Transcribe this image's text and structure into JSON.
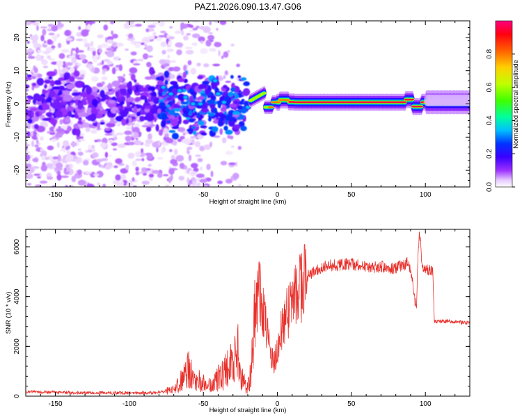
{
  "title": "PAZ1.2026.090.13.47.G06",
  "chart_data": [
    {
      "type": "heatmap",
      "title": "PAZ1.2026.090.13.47.G06",
      "xlabel": "Height of straight line (km)",
      "ylabel": "Frequency (Hz)",
      "xlim": [
        -170,
        130
      ],
      "ylim": [
        -25,
        25
      ],
      "xticks": [
        -150,
        -100,
        -50,
        0,
        50,
        100
      ],
      "yticks": [
        -20,
        -10,
        0,
        10,
        20
      ],
      "xtick_labels": [
        "-150",
        "-100",
        "-50",
        "0",
        "50",
        "100"
      ],
      "ytick_labels": [
        "-20",
        "-10",
        "0",
        "10",
        "20"
      ],
      "colorbar": {
        "label": "Normalized spectral amplitude",
        "range": [
          0,
          1
        ],
        "ticks": [
          0.0,
          0.2,
          0.4,
          0.6,
          0.8
        ],
        "tick_labels": [
          "0.0",
          "0.2",
          "0.4",
          "0.6",
          "0.8"
        ],
        "colors": [
          "#ffffff",
          "#d9b3ff",
          "#7f00ff",
          "#0000ff",
          "#00bfff",
          "#00ff80",
          "#80ff00",
          "#ffff00",
          "#ff8000",
          "#ff0000",
          "#ff0080"
        ]
      },
      "features": [
        {
          "region": "noise",
          "x_range": [
            -170,
            -25
          ],
          "freq_spread": [
            -25,
            25
          ],
          "amplitude": [
            0.0,
            0.15
          ]
        },
        {
          "region": "transition",
          "x_range": [
            -80,
            -20
          ],
          "freq_spread": [
            -12,
            10
          ],
          "amplitude": [
            0.1,
            0.4
          ]
        },
        {
          "region": "tone",
          "x_range": [
            -15,
            130
          ],
          "freq_center": 0.5,
          "amplitude": [
            0.6,
            1.0
          ]
        }
      ]
    },
    {
      "type": "line",
      "xlabel": "Height of straight line (km)",
      "ylabel": "SNR (10 * v/v)",
      "xlim": [
        -170,
        130
      ],
      "ylim": [
        0,
        6700
      ],
      "xticks": [
        -150,
        -100,
        -50,
        0,
        50,
        100
      ],
      "yticks": [
        0,
        2000,
        4000,
        6000
      ],
      "xtick_labels": [
        "-150",
        "-100",
        "-50",
        "0",
        "50",
        "100"
      ],
      "ytick_labels": [
        "0",
        "2000",
        "4000",
        "6000"
      ],
      "series": [
        {
          "name": "SNR",
          "color": "#e8302b",
          "x": [
            -170,
            -150,
            -130,
            -110,
            -90,
            -80,
            -70,
            -65,
            -60,
            -55,
            -50,
            -45,
            -40,
            -35,
            -30,
            -27,
            -25,
            -22,
            -20,
            -18,
            -16,
            -14,
            -12,
            -10,
            -8,
            -6,
            -4,
            -2,
            0,
            3,
            5,
            8,
            10,
            13,
            15,
            18,
            20,
            25,
            30,
            35,
            40,
            45,
            50,
            55,
            60,
            65,
            70,
            75,
            80,
            85,
            88,
            90,
            92,
            94,
            95,
            96,
            97,
            98,
            100,
            102,
            104,
            105,
            106,
            107,
            110,
            115,
            120,
            125,
            130
          ],
          "y": [
            180,
            150,
            140,
            130,
            130,
            160,
            250,
            600,
            1100,
            800,
            500,
            400,
            700,
            1000,
            1300,
            1900,
            800,
            500,
            300,
            900,
            2500,
            3800,
            4100,
            3600,
            2800,
            2200,
            1500,
            1300,
            1900,
            2800,
            3000,
            3600,
            3900,
            4200,
            4350,
            4600,
            4800,
            5000,
            5150,
            5250,
            5250,
            5300,
            5300,
            5250,
            5200,
            5200,
            5200,
            5150,
            5150,
            5250,
            5350,
            5100,
            4200,
            3500,
            5600,
            6600,
            5800,
            5100,
            5150,
            5100,
            5100,
            5100,
            3000,
            3000,
            3000,
            3000,
            3000,
            2950,
            2950
          ]
        }
      ]
    }
  ]
}
